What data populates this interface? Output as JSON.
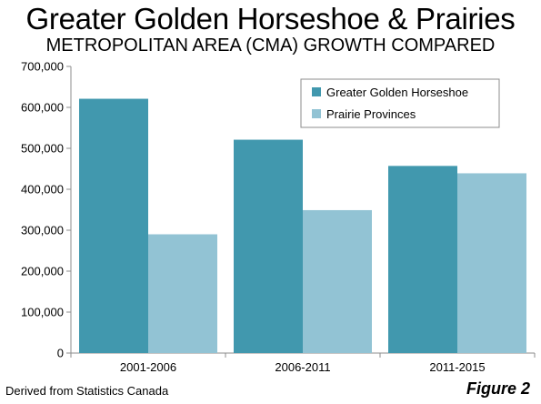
{
  "header": {
    "title": "Greater Golden Horseshoe & Prairies",
    "subtitle": "METROPOLITAN AREA (CMA) GROWTH COMPARED"
  },
  "footer": {
    "source": "Derived from Statistics Canada",
    "figure": "Figure 2"
  },
  "chart_data": {
    "type": "bar",
    "title": "Greater Golden Horseshoe & Prairies",
    "subtitle": "METROPOLITAN AREA (CMA) GROWTH COMPARED",
    "xlabel": "",
    "ylabel": "",
    "categories": [
      "2001-2006",
      "2006-2011",
      "2011-2015"
    ],
    "series": [
      {
        "name": "Greater Golden Horseshoe",
        "color": "#4198ae",
        "values": [
          621000,
          521000,
          457000
        ]
      },
      {
        "name": "Prairie Provinces",
        "color": "#92c3d4",
        "values": [
          290000,
          349000,
          439000
        ]
      }
    ],
    "ylim": [
      0,
      700000
    ],
    "yticks": [
      0,
      100000,
      200000,
      300000,
      400000,
      500000,
      600000,
      700000
    ],
    "ytick_labels": [
      "0",
      "100,000",
      "200,000",
      "300,000",
      "400,000",
      "500,000",
      "600,000",
      "700,000"
    ],
    "grid": false,
    "legend_position": "top-right"
  }
}
